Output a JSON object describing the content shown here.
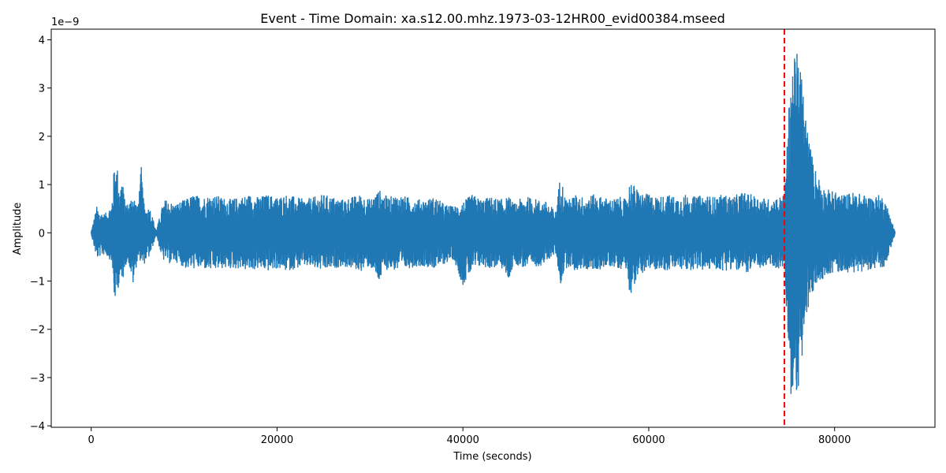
{
  "chart_data": {
    "type": "line",
    "title": "Event - Time Domain: xa.s12.00.mhz.1973-03-12HR00_evid00384.mseed",
    "xlabel": "Time (seconds)",
    "ylabel": "Amplitude",
    "y_offset_label": "1e−9",
    "xlim": [
      -4300,
      90800
    ],
    "ylim": [
      -4.03,
      4.22
    ],
    "x_ticks": [
      {
        "value": 0,
        "label": "0"
      },
      {
        "value": 20000,
        "label": "20000"
      },
      {
        "value": 40000,
        "label": "40000"
      },
      {
        "value": 60000,
        "label": "60000"
      },
      {
        "value": 80000,
        "label": "80000"
      }
    ],
    "y_ticks": [
      {
        "value": -4,
        "label": "−4"
      },
      {
        "value": -3,
        "label": "−3"
      },
      {
        "value": -2,
        "label": "−2"
      },
      {
        "value": -1,
        "label": "−1"
      },
      {
        "value": 0,
        "label": "0"
      },
      {
        "value": 1,
        "label": "1"
      },
      {
        "value": 2,
        "label": "2"
      },
      {
        "value": 3,
        "label": "3"
      },
      {
        "value": 4,
        "label": "4"
      }
    ],
    "grid": false,
    "series": [
      {
        "color": "#1f77b4",
        "x": [
          0,
          600,
          850,
          1500,
          2200,
          2500,
          2800,
          3100,
          3300,
          3600,
          4000,
          4500,
          5000,
          5400,
          5600,
          5800,
          6300,
          7000,
          7700,
          8000,
          8500,
          9000,
          9500,
          10200,
          11000,
          12000,
          13000,
          14000,
          15000,
          16000,
          17000,
          18000,
          19000,
          20000,
          21000,
          22000,
          23000,
          24000,
          25000,
          26000,
          27000,
          28000,
          29000,
          30000,
          31000,
          31500,
          32000,
          33000,
          34000,
          35000,
          36000,
          37000,
          38000,
          39000,
          40000,
          41000,
          42000,
          43000,
          44000,
          45000,
          45500,
          46000,
          47000,
          48000,
          49000,
          49500,
          50000,
          50500,
          51000,
          51500,
          52000,
          53000,
          54000,
          55000,
          56000,
          57000,
          57500,
          58000,
          59000,
          60000,
          61000,
          62000,
          63000,
          64000,
          65000,
          66000,
          67000,
          68000,
          69000,
          70000,
          71000,
          72000,
          73000,
          74000,
          74600,
          75000,
          75300,
          75600,
          76000,
          76400,
          76800,
          77200,
          77600,
          78000,
          78500,
          79000,
          79500,
          80000,
          81000,
          82000,
          83000,
          84000,
          85000,
          85500,
          86000,
          86500
        ],
        "upper": [
          0.03,
          0.55,
          0.45,
          0.4,
          0.6,
          1.45,
          1.4,
          0.9,
          1.2,
          0.7,
          0.6,
          0.85,
          0.55,
          1.4,
          0.75,
          0.5,
          0.55,
          0.05,
          0.6,
          0.7,
          0.65,
          0.6,
          0.65,
          0.7,
          0.8,
          0.75,
          0.8,
          0.75,
          0.7,
          0.75,
          0.8,
          0.75,
          0.8,
          0.75,
          0.8,
          0.75,
          0.7,
          0.75,
          0.8,
          0.75,
          0.7,
          0.75,
          0.8,
          0.7,
          0.9,
          0.8,
          0.75,
          0.8,
          0.75,
          0.7,
          0.7,
          0.75,
          0.6,
          0.55,
          0.65,
          0.8,
          0.7,
          0.75,
          0.7,
          0.75,
          0.6,
          0.7,
          0.75,
          0.7,
          0.65,
          0.55,
          0.45,
          1.25,
          0.75,
          0.7,
          0.8,
          0.75,
          0.8,
          0.75,
          0.7,
          0.75,
          0.7,
          1.1,
          0.85,
          0.8,
          0.75,
          0.8,
          0.75,
          0.8,
          0.75,
          0.8,
          0.75,
          0.8,
          0.75,
          0.85,
          0.8,
          0.75,
          0.7,
          0.75,
          0.8,
          2.2,
          3.7,
          3.55,
          3.85,
          3.4,
          2.7,
          2.0,
          1.6,
          1.3,
          1.1,
          0.9,
          0.9,
          0.85,
          0.8,
          0.85,
          0.8,
          0.75,
          0.8,
          0.65,
          0.35,
          0.04
        ],
        "lower": [
          -0.03,
          -0.55,
          -0.5,
          -0.45,
          -0.6,
          -1.45,
          -1.3,
          -0.9,
          -1.2,
          -0.7,
          -0.6,
          -1.1,
          -0.55,
          -0.6,
          -0.75,
          -0.6,
          -0.5,
          -0.05,
          -0.6,
          -0.55,
          -0.65,
          -0.6,
          -0.65,
          -0.75,
          -0.75,
          -0.75,
          -0.8,
          -0.75,
          -0.75,
          -0.75,
          -0.8,
          -0.75,
          -0.8,
          -0.75,
          -0.8,
          -0.75,
          -0.7,
          -0.75,
          -0.8,
          -0.75,
          -0.7,
          -0.75,
          -0.8,
          -0.7,
          -1.05,
          -0.8,
          -0.75,
          -0.8,
          -0.75,
          -0.7,
          -0.7,
          -0.75,
          -0.65,
          -0.55,
          -1.1,
          -0.8,
          -0.7,
          -0.75,
          -0.7,
          -1.0,
          -0.6,
          -0.7,
          -0.75,
          -0.7,
          -0.65,
          -0.5,
          -0.45,
          -1.1,
          -0.75,
          -0.7,
          -0.8,
          -0.75,
          -0.8,
          -0.75,
          -0.7,
          -0.75,
          -0.7,
          -1.3,
          -0.85,
          -0.8,
          -0.75,
          -0.8,
          -0.75,
          -0.8,
          -0.75,
          -0.8,
          -0.75,
          -0.8,
          -0.75,
          -0.85,
          -0.8,
          -0.75,
          -0.7,
          -0.75,
          -0.8,
          -2.3,
          -3.5,
          -3.6,
          -3.3,
          -2.9,
          -2.0,
          -1.6,
          -1.3,
          -1.1,
          -1.0,
          -0.9,
          -0.85,
          -0.85,
          -0.8,
          -0.85,
          -0.8,
          -0.75,
          -0.8,
          -0.65,
          -0.35,
          -0.04
        ]
      }
    ],
    "vline": {
      "x": 74600,
      "color": "#ff0000",
      "style": "dashed"
    }
  }
}
